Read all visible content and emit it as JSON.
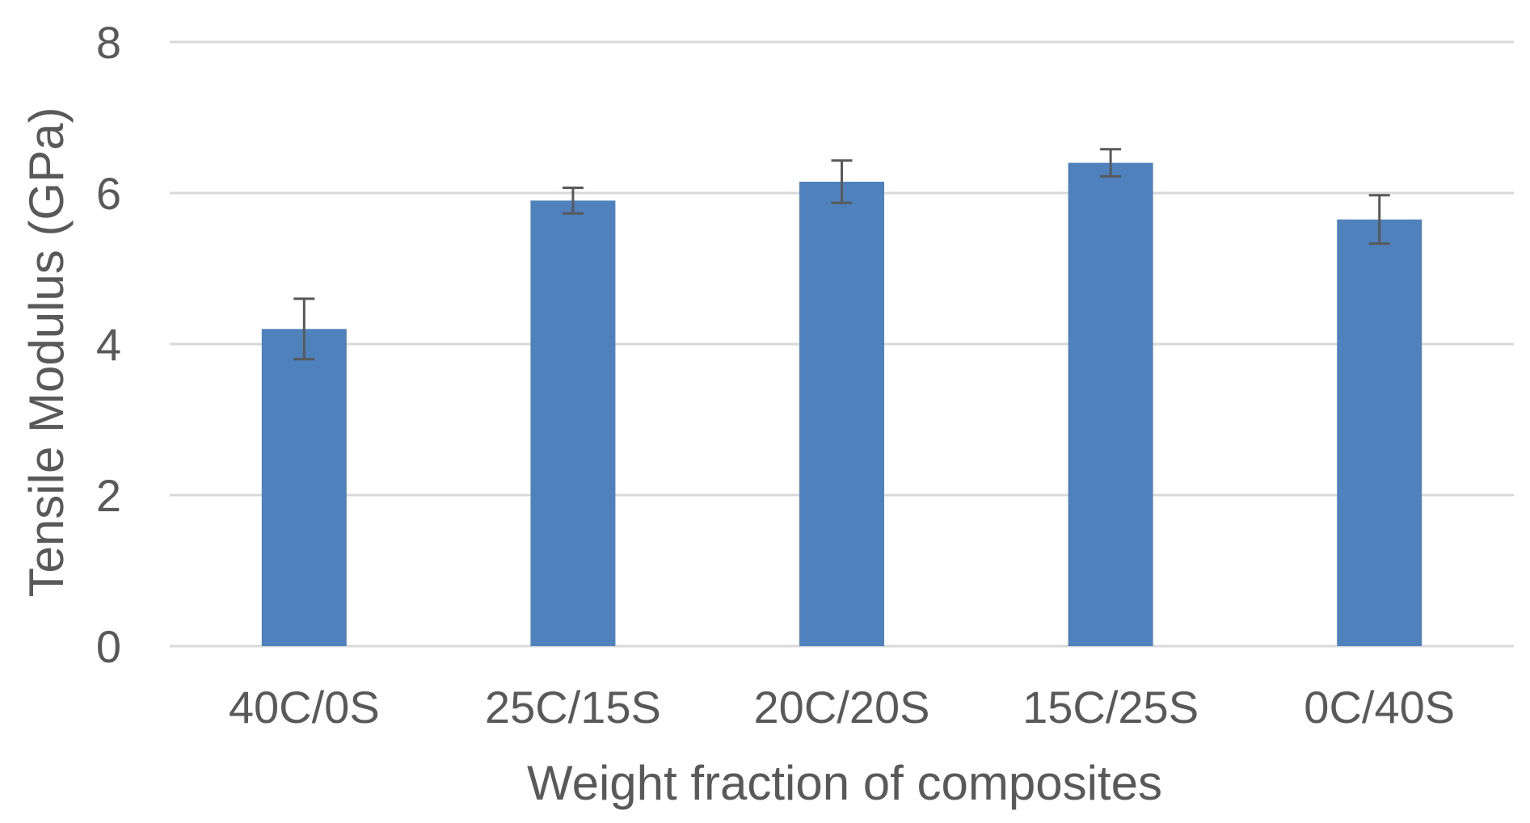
{
  "chart_data": {
    "type": "bar",
    "title": "",
    "xlabel": "Weight fraction of composites",
    "ylabel": "Tensile Modulus (GPa)",
    "categories": [
      "40C/0S",
      "25C/15S",
      "20C/20S",
      "15C/25S",
      "0C/40S"
    ],
    "series": [
      {
        "values": [
          4.2,
          5.9,
          6.15,
          6.4,
          5.65
        ],
        "errors": [
          0.4,
          0.17,
          0.28,
          0.18,
          0.32
        ]
      }
    ],
    "ylim": [
      0,
      8
    ],
    "yticks": [
      "0",
      "2",
      "4",
      "6",
      "8"
    ],
    "grid": true,
    "legend": "none",
    "bar_color": "#4f81bd",
    "gridline_color": "#d9d9d9",
    "text_color": "#595959",
    "error_bar_color": "#595959"
  }
}
